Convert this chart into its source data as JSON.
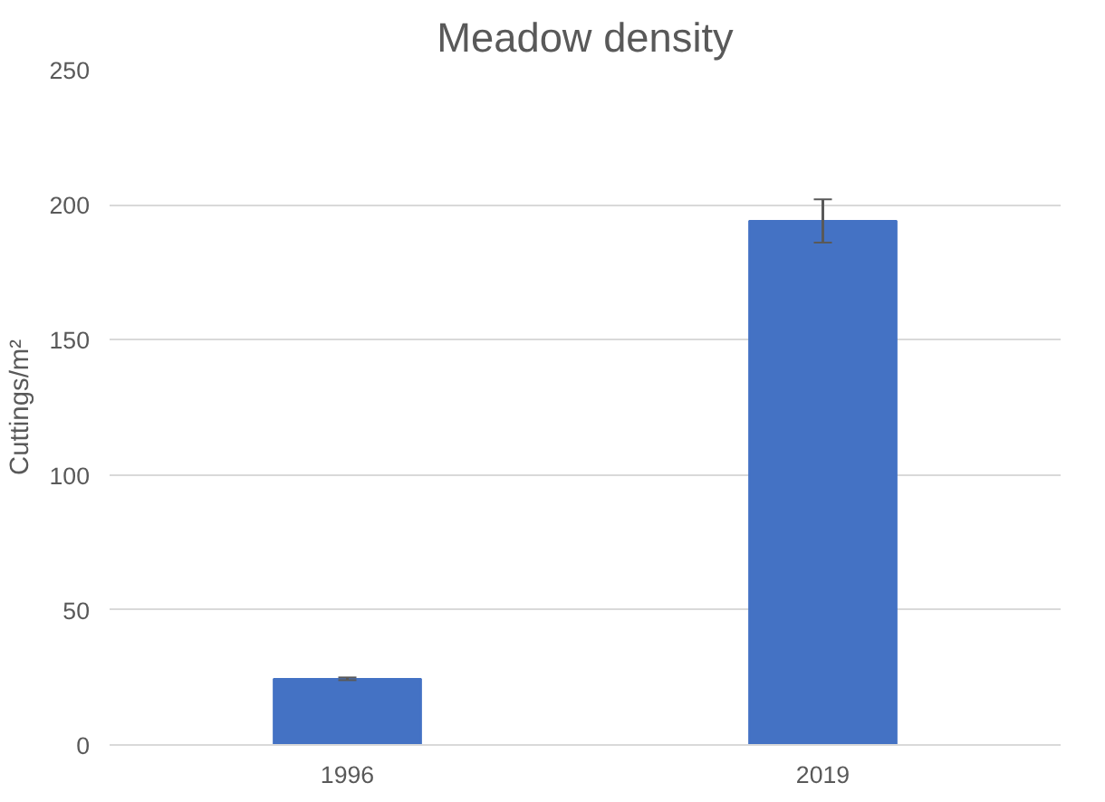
{
  "chart_data": {
    "type": "bar",
    "title": "Meadow density",
    "ylabel": "Cuttings/m²",
    "categories": [
      "1996",
      "2019"
    ],
    "values": [
      24.5,
      194
    ],
    "errors": [
      0.5,
      8
    ],
    "color": "#4472c4",
    "ylim": [
      0,
      250
    ],
    "yticks": [
      0,
      50,
      100,
      150,
      200,
      250
    ],
    "grid": "y"
  }
}
